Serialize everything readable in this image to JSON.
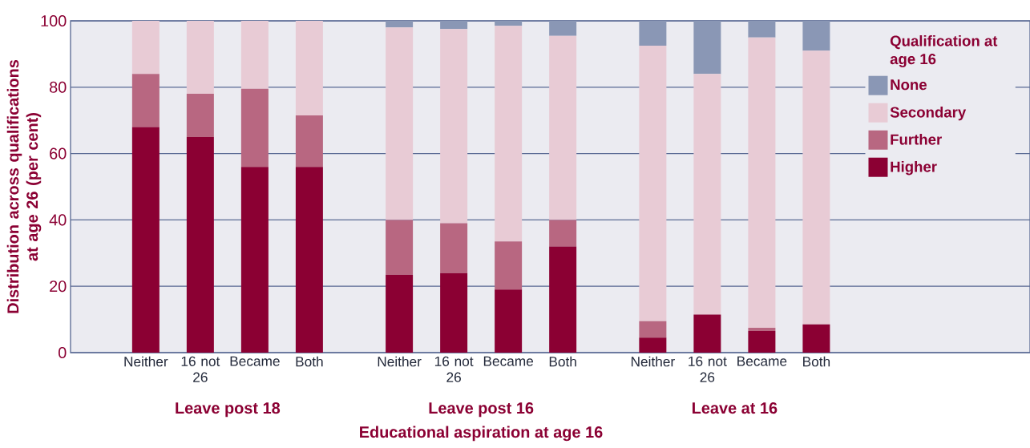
{
  "chart_data": {
    "type": "bar",
    "stacked": true,
    "categories": [
      "Neither",
      "16 not 26",
      "Became",
      "Both",
      "Neither",
      "16 not 26",
      "Became",
      "Both",
      "Neither",
      "16 not 26",
      "Became",
      "Both"
    ],
    "series": [
      {
        "name": "Higher",
        "color": "#8b0033",
        "values": [
          68,
          65,
          56,
          56,
          23.5,
          24,
          19,
          32,
          4.5,
          11.5,
          6.5,
          8.5
        ]
      },
      {
        "name": "Further",
        "color": "#b86781",
        "values": [
          16,
          13,
          23.5,
          15.5,
          16.5,
          15,
          14.5,
          8,
          5,
          0,
          1,
          0
        ]
      },
      {
        "name": "Secondary",
        "color": "#e8cbd5",
        "values": [
          16,
          22,
          20.5,
          28.5,
          58,
          58.5,
          65,
          55.5,
          83,
          72.5,
          87.5,
          82.5
        ]
      },
      {
        "name": "None",
        "color": "#8a97b5",
        "values": [
          0,
          0,
          0,
          0,
          2,
          2.5,
          1.5,
          4.5,
          7.5,
          16,
          5,
          9
        ]
      }
    ],
    "ylim": [
      0,
      100
    ],
    "yticks": [
      0,
      20,
      40,
      60,
      80,
      100
    ],
    "grid": "y",
    "ylabel": "Distribution across qualifications at age 26 (per cent)",
    "xlabel": "Educational aspiration at age 16",
    "legend": "top right",
    "legend_title": "Qualification at age 16",
    "annotations": [
      "Leave post 18",
      "Leave post 16",
      "Leave at 16"
    ]
  }
}
